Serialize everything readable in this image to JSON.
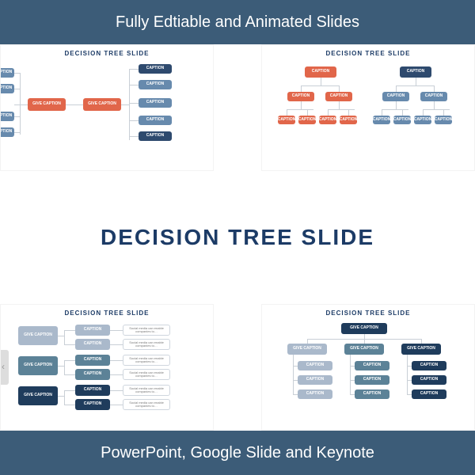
{
  "colors": {
    "banner": "#3c5c78",
    "title": "#1c3b66",
    "orange": "#e1664a",
    "orange_hub": "#e1664a",
    "blue_dark": "#2e4a6e",
    "blue_med": "#678aad",
    "blue_light": "#aab9cb",
    "teal": "#5c8297",
    "navy": "#1f3c5c",
    "conn": "#c9cfd6"
  },
  "banners": {
    "top": "Fully Edtiable and Animated Slides",
    "bottom": "PowerPoint, Google Slide and Keynote"
  },
  "main_title": "DECISION TREE SLIDE",
  "slide_title": "DECISION TREE SLIDE",
  "labels": {
    "caption": "CAPTION",
    "give_caption": "GIVE CAPTION",
    "note": "Social media can enable companies to…"
  }
}
